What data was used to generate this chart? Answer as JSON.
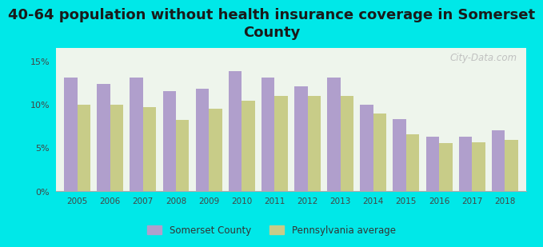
{
  "title": "40-64 population without health insurance coverage in Somerset\nCounty",
  "years": [
    2005,
    2006,
    2007,
    2008,
    2009,
    2010,
    2011,
    2012,
    2013,
    2014,
    2015,
    2016,
    2017,
    2018
  ],
  "somerset": [
    13.1,
    12.4,
    13.1,
    11.5,
    11.8,
    13.9,
    13.1,
    12.1,
    13.1,
    10.0,
    8.3,
    6.3,
    6.3,
    7.0
  ],
  "pennsylvania": [
    10.0,
    10.0,
    9.7,
    8.2,
    9.5,
    10.4,
    11.0,
    11.0,
    11.0,
    9.0,
    6.6,
    5.5,
    5.6,
    5.9
  ],
  "somerset_color": "#b09fcc",
  "pennsylvania_color": "#c8cc88",
  "background_outer": "#00e8e8",
  "background_inner": "#eef5ec",
  "title_fontsize": 13,
  "ylabel_ticks": [
    "0%",
    "5%",
    "10%",
    "15%"
  ],
  "yticks": [
    0,
    5,
    10,
    15
  ],
  "ylim": [
    0,
    16.5
  ],
  "bar_width": 0.4,
  "watermark": "City-Data.com"
}
